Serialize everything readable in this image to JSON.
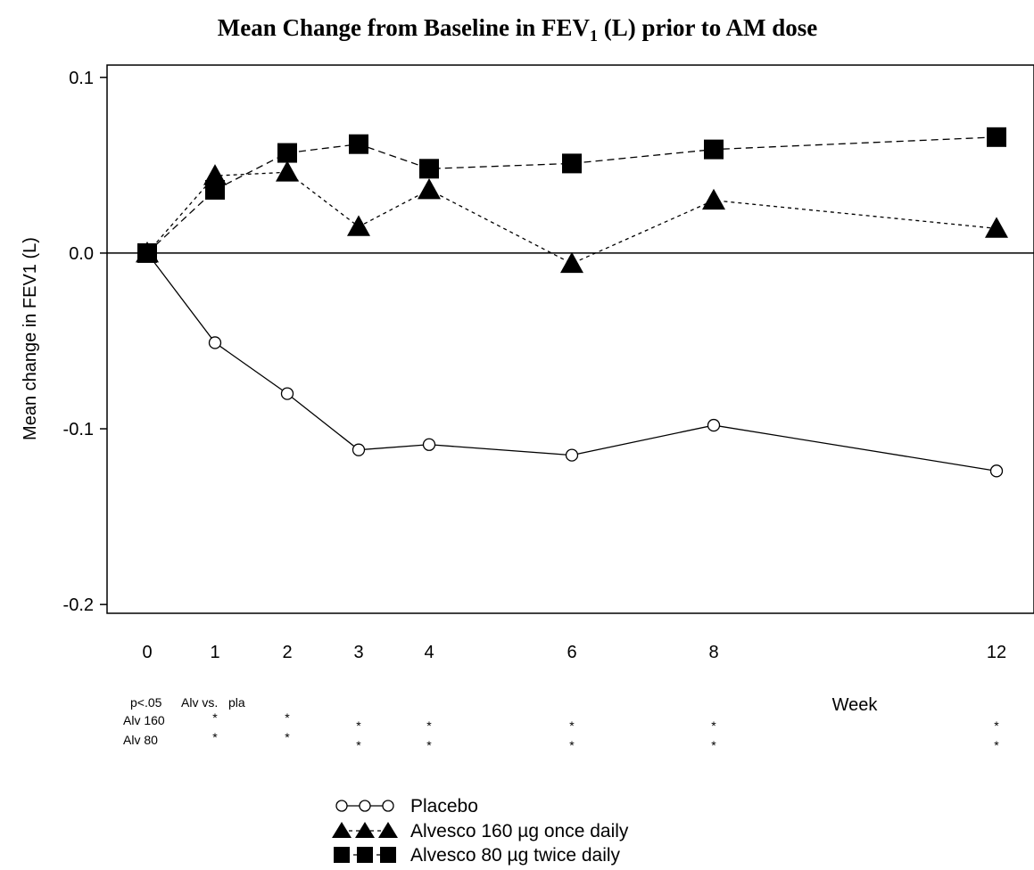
{
  "chart_data": {
    "type": "line",
    "title": "Mean Change from Baseline in FEV",
    "title_subscript": "1",
    "title_rest": " (L) prior to AM dose",
    "xlabel": "Week",
    "ylabel": "Mean change in FEV1 (L)",
    "x": [
      0,
      1,
      2,
      3,
      4,
      6,
      8,
      12
    ],
    "x_tick_labels": [
      "0",
      "1",
      "2",
      "3",
      "4",
      "6",
      "8",
      "12"
    ],
    "y_ticks": [
      -0.2,
      -0.1,
      0.0,
      0.1
    ],
    "y_tick_labels": [
      "-0.2",
      "-0.1",
      "0.0",
      "0.1"
    ],
    "ylim": [
      -0.205,
      0.107
    ],
    "reference_line_y": 0.0,
    "grid": false,
    "legend_position": "bottom",
    "series": [
      {
        "name": "Placebo",
        "marker": "open-circle",
        "line": "solid",
        "values": [
          0.0,
          -0.051,
          -0.08,
          -0.112,
          -0.109,
          -0.115,
          -0.098,
          -0.124
        ]
      },
      {
        "name": "Alvesco 160 µg once daily",
        "marker": "filled-triangle",
        "line": "dotted",
        "values": [
          0.0,
          0.044,
          0.046,
          0.015,
          0.036,
          -0.006,
          0.03,
          0.014
        ]
      },
      {
        "name": "Alvesco 80 µg twice daily",
        "marker": "filled-square",
        "line": "dashed",
        "values": [
          0.0,
          0.036,
          0.057,
          0.062,
          0.048,
          0.051,
          0.059,
          0.066
        ]
      }
    ],
    "significance": {
      "header": [
        "p<.05",
        "Alv vs.",
        "pla"
      ],
      "rows": [
        {
          "label": "Alv 160",
          "marks": [
            {
              "x": 1,
              "mark": "*"
            },
            {
              "x": 2,
              "mark": "*"
            },
            {
              "x": 3,
              "mark": "*"
            },
            {
              "x": 4,
              "mark": "*"
            },
            {
              "x": 6,
              "mark": "*"
            },
            {
              "x": 8,
              "mark": "*"
            },
            {
              "x": 12,
              "mark": "*"
            }
          ]
        },
        {
          "label": "Alv 80",
          "marks": [
            {
              "x": 1,
              "mark": "*"
            },
            {
              "x": 2,
              "mark": "*"
            },
            {
              "x": 3,
              "mark": "*"
            },
            {
              "x": 4,
              "mark": "*"
            },
            {
              "x": 6,
              "mark": "*"
            },
            {
              "x": 8,
              "mark": "*"
            },
            {
              "x": 12,
              "mark": "*"
            }
          ]
        }
      ]
    }
  }
}
